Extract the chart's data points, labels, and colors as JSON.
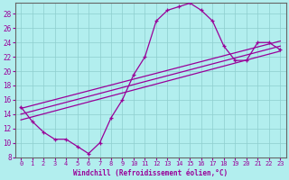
{
  "xlabel": "Windchill (Refroidissement éolien,°C)",
  "bg_color": "#b2eeee",
  "grid_color": "#aadddd",
  "line_color": "#990099",
  "xlim": [
    -0.5,
    23.5
  ],
  "ylim": [
    8,
    29.5
  ],
  "xticks": [
    0,
    1,
    2,
    3,
    4,
    5,
    6,
    7,
    8,
    9,
    10,
    11,
    12,
    13,
    14,
    15,
    16,
    17,
    18,
    19,
    20,
    21,
    22,
    23
  ],
  "yticks": [
    8,
    10,
    12,
    14,
    16,
    18,
    20,
    22,
    24,
    26,
    28
  ],
  "hours": [
    0,
    1,
    2,
    3,
    4,
    5,
    6,
    7,
    8,
    9,
    10,
    11,
    12,
    13,
    14,
    15,
    16,
    17,
    18,
    19,
    20,
    21,
    22,
    23
  ],
  "temp": [
    15.0,
    13.0,
    11.5,
    10.5,
    10.5,
    9.5,
    8.5,
    10.0,
    13.5,
    16.0,
    19.5,
    22.0,
    27.0,
    28.5,
    29.0,
    29.5,
    28.5,
    27.0,
    23.5,
    21.5,
    21.5,
    24.0,
    24.0,
    23.0
  ],
  "line1_x": [
    0,
    23
  ],
  "line1_y": [
    14.8,
    24.2
  ],
  "line2_x": [
    0,
    23
  ],
  "line2_y": [
    13.2,
    22.8
  ],
  "line3_x": [
    0,
    23
  ],
  "line3_y": [
    14.0,
    23.5
  ]
}
